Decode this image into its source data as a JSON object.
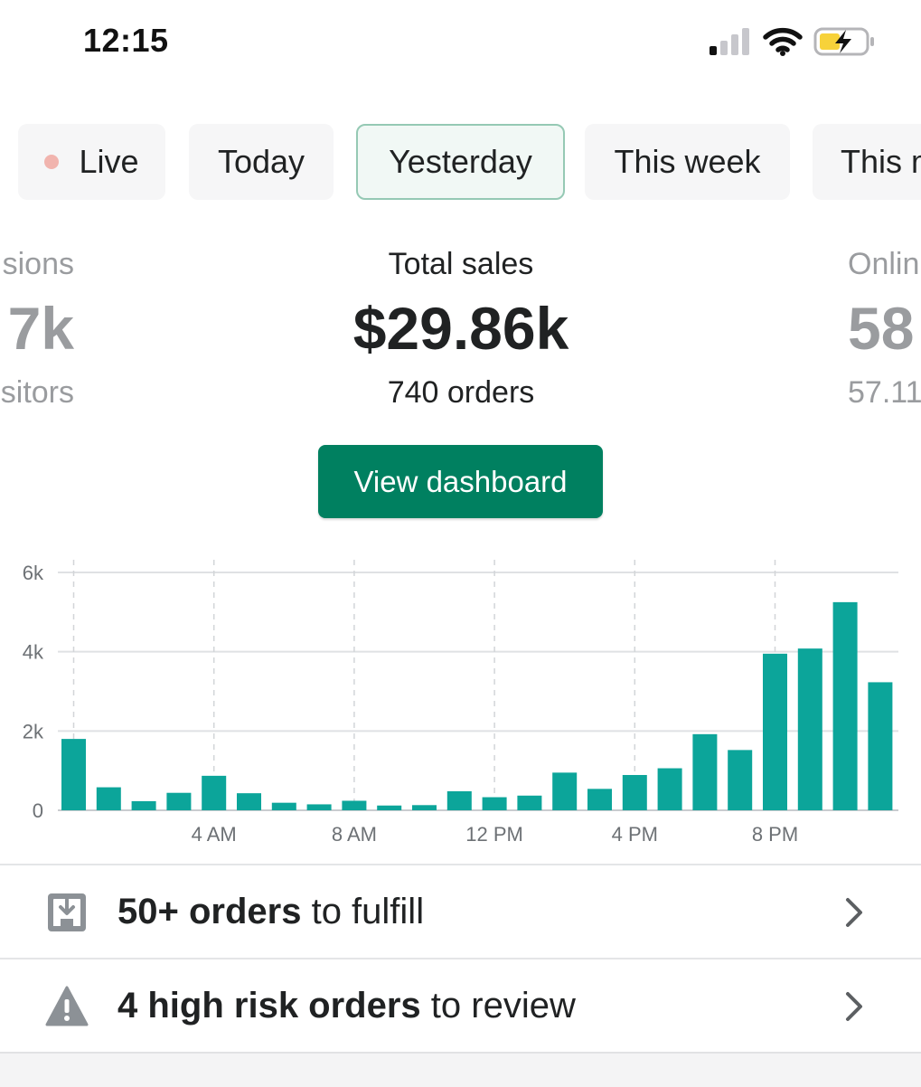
{
  "status_bar": {
    "time": "12:15"
  },
  "tabs": [
    {
      "label": "Live"
    },
    {
      "label": "Today"
    },
    {
      "label": "Yesterday"
    },
    {
      "label": "This week"
    },
    {
      "label": "This m"
    }
  ],
  "metrics": {
    "left": {
      "label": "sions",
      "value": "7k",
      "sub": "sitors"
    },
    "center": {
      "label": "Total sales",
      "value": "$29.86k",
      "sub": "740 orders"
    },
    "right": {
      "label": "Onlin",
      "value": "58",
      "sub": "57.11"
    }
  },
  "view_dashboard_label": "View dashboard",
  "chart_data": {
    "type": "bar",
    "title": "",
    "y_tick_labels": [
      "0",
      "2k",
      "4k",
      "6k"
    ],
    "ylim": [
      0,
      6000
    ],
    "x_tick_labels": [
      "4 AM",
      "8 AM",
      "12 PM",
      "4 PM",
      "8 PM"
    ],
    "categories": [
      "0",
      "1",
      "2",
      "3",
      "4",
      "5",
      "6",
      "7",
      "8",
      "9",
      "10",
      "11",
      "12",
      "13",
      "14",
      "15",
      "16",
      "17",
      "18",
      "19",
      "20",
      "21",
      "22",
      "23"
    ],
    "values": [
      1800,
      580,
      230,
      440,
      870,
      430,
      190,
      150,
      240,
      120,
      130,
      480,
      330,
      370,
      950,
      540,
      890,
      1060,
      1920,
      1520,
      3950,
      4080,
      5250,
      3230
    ],
    "grid": true,
    "color": "#0ca59a"
  },
  "rows": [
    {
      "bold": "50+ orders",
      "rest": " to fulfill"
    },
    {
      "bold": "4 high risk orders",
      "rest": " to review"
    }
  ]
}
